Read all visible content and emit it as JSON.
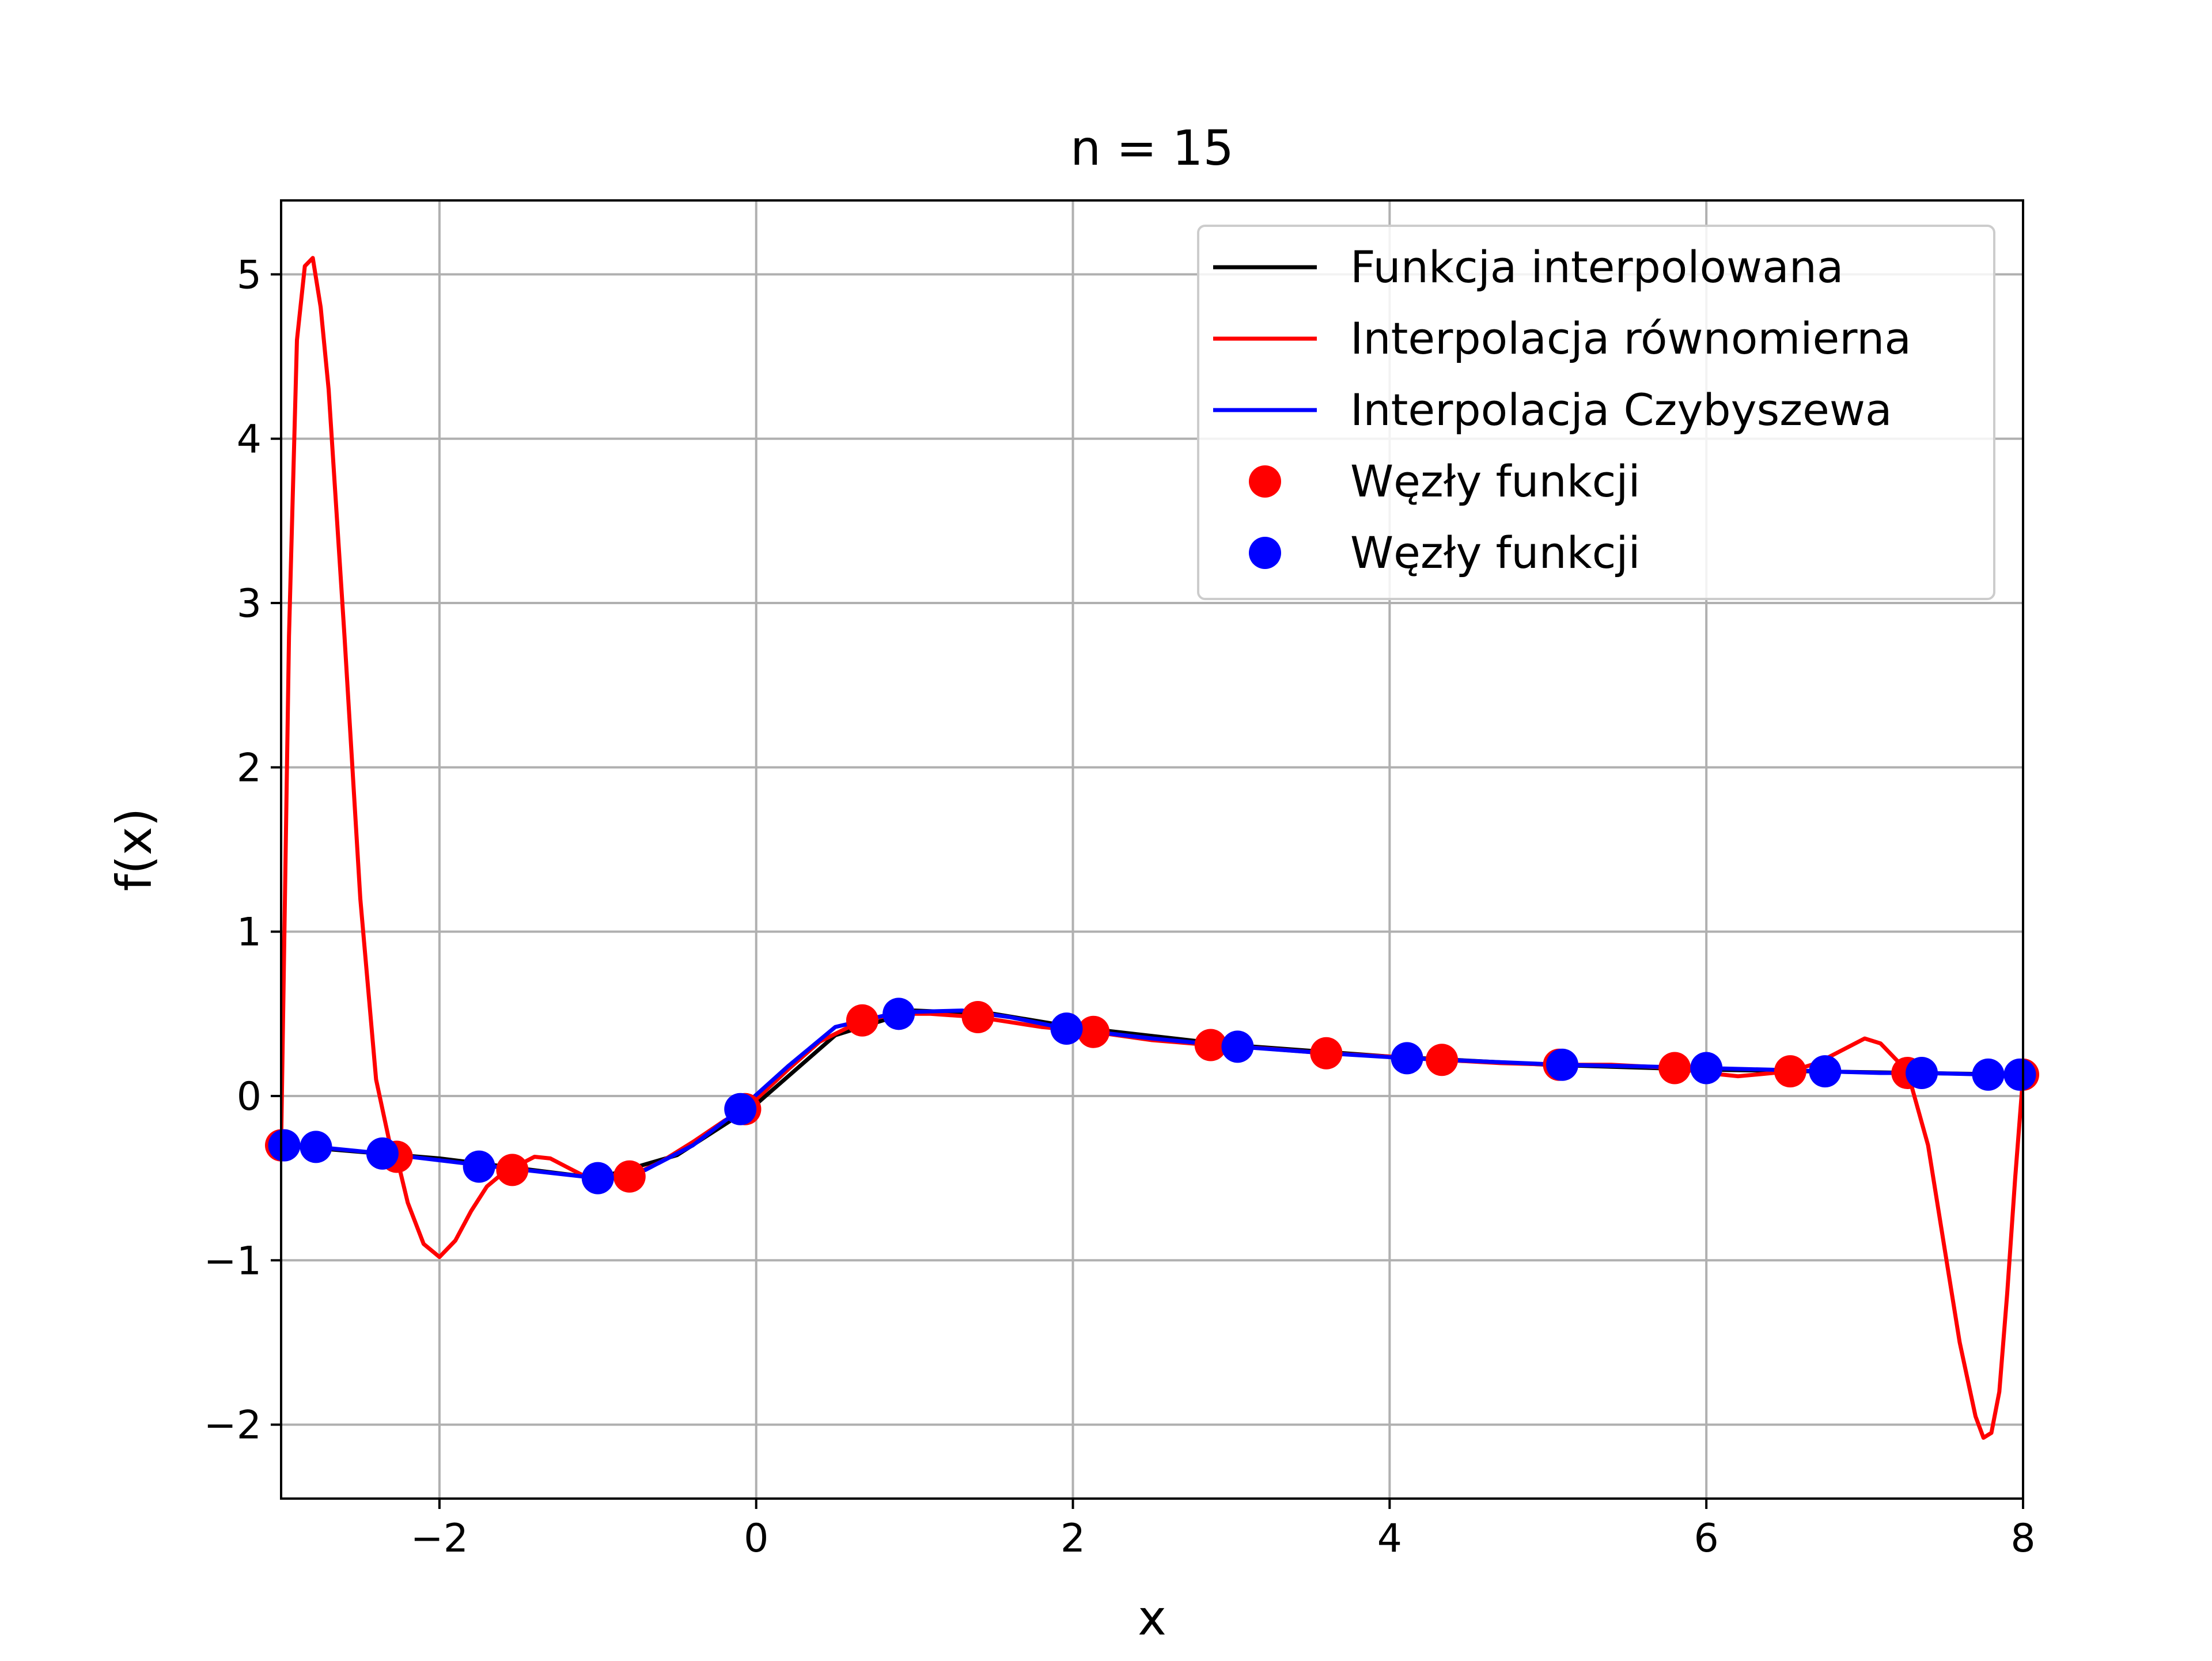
{
  "chart_data": {
    "type": "line",
    "title": "n = 15",
    "xlabel": "x",
    "ylabel": "f(x)",
    "xlim": [
      -3,
      8
    ],
    "ylim": [
      -2.45,
      5.45
    ],
    "xticks": [
      -2,
      0,
      2,
      4,
      6,
      8
    ],
    "xtick_labels": [
      "−2",
      "0",
      "2",
      "4",
      "6",
      "8"
    ],
    "yticks": [
      -2,
      -1,
      0,
      1,
      2,
      3,
      4,
      5
    ],
    "ytick_labels": [
      "−2",
      "−1",
      "0",
      "1",
      "2",
      "3",
      "4",
      "5"
    ],
    "grid": true,
    "legend_position": "top-right",
    "series": [
      {
        "name": "Funkcja interpolowana",
        "kind": "line",
        "color": "#000000",
        "x": [
          -3.0,
          -2.5,
          -2.0,
          -1.5,
          -1.0,
          -0.5,
          0.0,
          0.5,
          1.0,
          1.5,
          2.0,
          3.0,
          4.0,
          5.0,
          6.0,
          7.0,
          8.0
        ],
        "y": [
          -0.3,
          -0.34,
          -0.38,
          -0.44,
          -0.5,
          -0.36,
          -0.05,
          0.37,
          0.52,
          0.5,
          0.42,
          0.31,
          0.24,
          0.19,
          0.16,
          0.145,
          0.13
        ]
      },
      {
        "name": "Interpolacja równomierna",
        "kind": "line",
        "color": "#ff0000",
        "x": [
          -3.0,
          -2.95,
          -2.9,
          -2.85,
          -2.8,
          -2.75,
          -2.7,
          -2.6,
          -2.5,
          -2.4,
          -2.3,
          -2.27,
          -2.2,
          -2.1,
          -2.0,
          -1.9,
          -1.8,
          -1.7,
          -1.6,
          -1.54,
          -1.5,
          -1.4,
          -1.3,
          -1.2,
          -1.1,
          -1.0,
          -0.9,
          -0.8,
          -0.6,
          -0.4,
          -0.2,
          -0.07,
          0.0,
          0.2,
          0.4,
          0.67,
          0.9,
          1.1,
          1.4,
          1.6,
          1.8,
          2.13,
          2.5,
          2.87,
          3.2,
          3.6,
          4.0,
          4.33,
          4.7,
          5.07,
          5.4,
          5.8,
          6.0,
          6.2,
          6.53,
          6.7,
          6.9,
          7.0,
          7.1,
          7.27,
          7.4,
          7.5,
          7.6,
          7.7,
          7.75,
          7.8,
          7.85,
          7.9,
          7.95,
          8.0
        ],
        "y": [
          -0.3,
          2.8,
          4.6,
          5.05,
          5.1,
          4.8,
          4.3,
          2.8,
          1.2,
          0.1,
          -0.35,
          -0.37,
          -0.65,
          -0.9,
          -0.98,
          -0.88,
          -0.7,
          -0.55,
          -0.47,
          -0.45,
          -0.42,
          -0.37,
          -0.38,
          -0.43,
          -0.48,
          -0.5,
          -0.5,
          -0.49,
          -0.4,
          -0.28,
          -0.15,
          -0.08,
          -0.02,
          0.16,
          0.33,
          0.46,
          0.5,
          0.5,
          0.48,
          0.45,
          0.42,
          0.39,
          0.34,
          0.31,
          0.29,
          0.26,
          0.24,
          0.22,
          0.2,
          0.19,
          0.19,
          0.17,
          0.14,
          0.12,
          0.15,
          0.2,
          0.3,
          0.35,
          0.32,
          0.15,
          -0.3,
          -0.9,
          -1.5,
          -1.95,
          -2.08,
          -2.05,
          -1.8,
          -1.2,
          -0.5,
          0.12
        ]
      },
      {
        "name": "Interpolacja Czybyszewa",
        "kind": "line",
        "color": "#0000ff",
        "x": [
          -3.0,
          -2.78,
          -2.36,
          -1.75,
          -1.0,
          -0.7,
          -0.4,
          -0.1,
          0.2,
          0.5,
          0.9,
          1.3,
          1.6,
          1.96,
          2.5,
          3.04,
          3.6,
          4.11,
          4.6,
          5.09,
          5.6,
          6.0,
          6.4,
          6.75,
          7.1,
          7.36,
          7.6,
          7.78,
          8.0
        ],
        "y": [
          -0.3,
          -0.31,
          -0.35,
          -0.42,
          -0.5,
          -0.45,
          -0.3,
          -0.08,
          0.18,
          0.42,
          0.51,
          0.52,
          0.48,
          0.41,
          0.35,
          0.3,
          0.26,
          0.23,
          0.21,
          0.19,
          0.18,
          0.17,
          0.16,
          0.15,
          0.14,
          0.14,
          0.135,
          0.13,
          0.13
        ]
      },
      {
        "name": "Węzły funkcji",
        "kind": "markers",
        "color": "#ff0000",
        "x": [
          -3.0,
          -2.27,
          -1.54,
          -0.8,
          -0.07,
          0.67,
          1.4,
          2.13,
          2.87,
          3.6,
          4.33,
          5.07,
          5.8,
          6.53,
          7.27,
          8.0
        ],
        "y": [
          -0.3,
          -0.37,
          -0.45,
          -0.49,
          -0.08,
          0.46,
          0.48,
          0.39,
          0.31,
          0.26,
          0.22,
          0.19,
          0.17,
          0.15,
          0.14,
          0.13
        ]
      },
      {
        "name": "Węzły funkcji",
        "kind": "markers",
        "color": "#0000ff",
        "x": [
          -2.98,
          -2.78,
          -2.36,
          -1.75,
          -1.0,
          -0.1,
          0.9,
          1.96,
          3.04,
          4.11,
          5.09,
          6.0,
          6.75,
          7.36,
          7.78,
          7.98
        ],
        "y": [
          -0.3,
          -0.31,
          -0.35,
          -0.43,
          -0.5,
          -0.08,
          0.5,
          0.41,
          0.3,
          0.23,
          0.19,
          0.17,
          0.15,
          0.14,
          0.13,
          0.13
        ]
      }
    ]
  }
}
